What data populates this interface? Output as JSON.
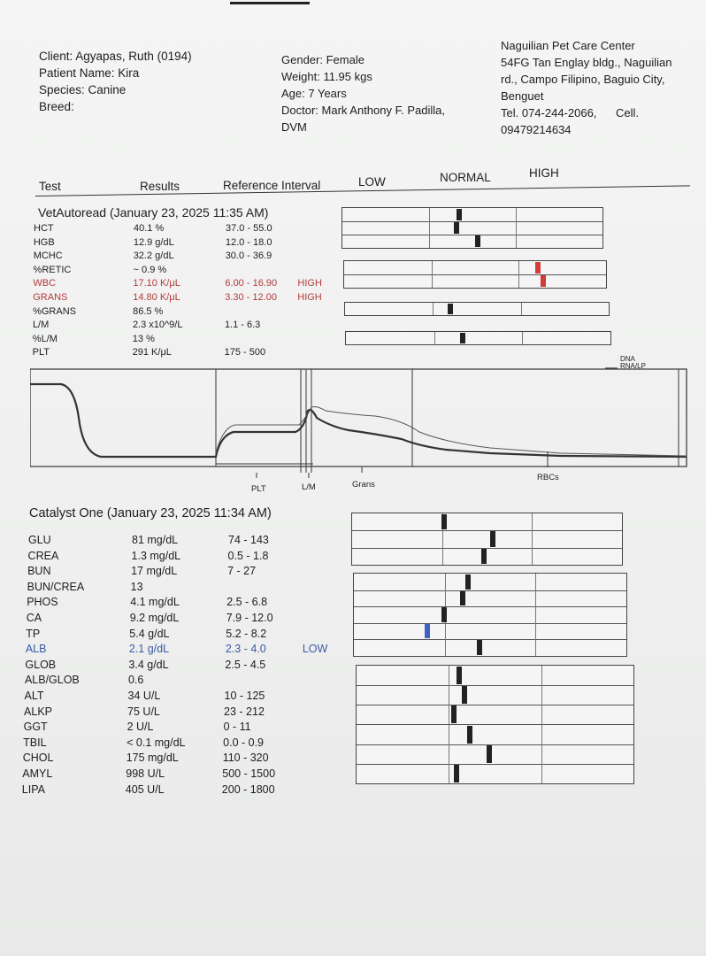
{
  "header": {
    "client": "Client: Agyapas, Ruth (0194)",
    "patient": "Patient Name: Kira",
    "species": "Species: Canine",
    "breed": "Breed:",
    "gender": "Gender: Female",
    "weight": "Weight: 11.95 kgs",
    "age": "Age: 7 Years",
    "doctor_line1": "Doctor: Mark Anthony F. Padilla,",
    "doctor_line2": "DVM",
    "clinic_name": "Naguilian Pet Care Center",
    "clinic_addr1": "54FG Tan Englay bldg., Naguilian",
    "clinic_addr2": "rd., Campo Filipino, Baguio City,",
    "clinic_addr3": "Benguet",
    "clinic_tel": "Tel. 074-244-2066,",
    "clinic_cell": "Cell.",
    "clinic_cellno": "09479214634"
  },
  "columns": {
    "test": "Test",
    "results": "Results",
    "reference": "Reference Interval",
    "low": "LOW",
    "normal": "NORMAL",
    "high": "HIGH"
  },
  "vetautoread": {
    "title": "VetAutoread (January 23, 2025 11:35 AM)",
    "rows": [
      {
        "name": "HCT",
        "result": "40.1 %",
        "ref": "37.0 - 55.0",
        "flag": "",
        "color": "normal"
      },
      {
        "name": "HGB",
        "result": "12.9 g/dL",
        "ref": "12.0 - 18.0",
        "flag": "",
        "color": "normal"
      },
      {
        "name": "MCHC",
        "result": "32.2 g/dL",
        "ref": "30.0 - 36.9",
        "flag": "",
        "color": "normal"
      },
      {
        "name": "%RETIC",
        "result": "~ 0.9 %",
        "ref": "",
        "flag": "",
        "color": "normal"
      },
      {
        "name": "WBC",
        "result": "17.10 K/μL",
        "ref": "6.00 - 16.90",
        "flag": "HIGH",
        "color": "red"
      },
      {
        "name": "GRANS",
        "result": "14.80 K/μL",
        "ref": "3.30 - 12.00",
        "flag": "HIGH",
        "color": "red"
      },
      {
        "name": "%GRANS",
        "result": "86.5 %",
        "ref": "",
        "flag": "",
        "color": "normal"
      },
      {
        "name": "L/M",
        "result": "2.3 x10^9/L",
        "ref": "1.1 - 6.3",
        "flag": "",
        "color": "normal"
      },
      {
        "name": "%L/M",
        "result": "13 %",
        "ref": "",
        "flag": "",
        "color": "normal"
      },
      {
        "name": "PLT",
        "result": "291 K/μL",
        "ref": "175 - 500",
        "flag": "",
        "color": "normal"
      }
    ],
    "markers": [
      {
        "group": 0,
        "row": 0,
        "position": 0.45,
        "color": "black"
      },
      {
        "group": 0,
        "row": 1,
        "position": 0.44,
        "color": "black"
      },
      {
        "group": 0,
        "row": 2,
        "position": 0.52,
        "color": "black"
      },
      {
        "group": 1,
        "row": 0,
        "position": 0.74,
        "color": "red"
      },
      {
        "group": 1,
        "row": 1,
        "position": 0.76,
        "color": "red"
      },
      {
        "group": 2,
        "row": 0,
        "position": 0.4,
        "color": "black"
      },
      {
        "group": 3,
        "row": 0,
        "position": 0.44,
        "color": "black"
      }
    ]
  },
  "histogram": {
    "legend": [
      "DNA",
      "RNA/LP"
    ],
    "labels": [
      "PLT",
      "L/M",
      "Grans",
      "RBCs"
    ]
  },
  "catalyst": {
    "title": "Catalyst One (January 23, 2025 11:34 AM)",
    "rows": [
      {
        "name": "GLU",
        "result": "81 mg/dL",
        "ref": "74 - 143",
        "flag": "",
        "color": "normal"
      },
      {
        "name": "CREA",
        "result": "1.3 mg/dL",
        "ref": "0.5 - 1.8",
        "flag": "",
        "color": "normal"
      },
      {
        "name": "BUN",
        "result": "17 mg/dL",
        "ref": "7 - 27",
        "flag": "",
        "color": "normal"
      },
      {
        "name": "BUN/CREA",
        "result": "13",
        "ref": "",
        "flag": "",
        "color": "normal"
      },
      {
        "name": "PHOS",
        "result": "4.1 mg/dL",
        "ref": "2.5 - 6.8",
        "flag": "",
        "color": "normal"
      },
      {
        "name": "CA",
        "result": "9.2 mg/dL",
        "ref": "7.9 - 12.0",
        "flag": "",
        "color": "normal"
      },
      {
        "name": "TP",
        "result": "5.4 g/dL",
        "ref": "5.2 - 8.2",
        "flag": "",
        "color": "normal"
      },
      {
        "name": "ALB",
        "result": "2.1 g/dL",
        "ref": "2.3 - 4.0",
        "flag": "LOW",
        "color": "blue"
      },
      {
        "name": "GLOB",
        "result": "3.4 g/dL",
        "ref": "2.5 - 4.5",
        "flag": "",
        "color": "normal"
      },
      {
        "name": "ALB/GLOB",
        "result": "0.6",
        "ref": "",
        "flag": "",
        "color": "normal"
      },
      {
        "name": "ALT",
        "result": "34 U/L",
        "ref": "10 - 125",
        "flag": "",
        "color": "normal"
      },
      {
        "name": "ALKP",
        "result": "75 U/L",
        "ref": "23 - 212",
        "flag": "",
        "color": "normal"
      },
      {
        "name": "GGT",
        "result": "2 U/L",
        "ref": "0 - 11",
        "flag": "",
        "color": "normal"
      },
      {
        "name": "TBIL",
        "result": "< 0.1 mg/dL",
        "ref": "0.0 - 0.9",
        "flag": "",
        "color": "normal"
      },
      {
        "name": "CHOL",
        "result": "175 mg/dL",
        "ref": "110 - 320",
        "flag": "",
        "color": "normal"
      },
      {
        "name": "AMYL",
        "result": "998 U/L",
        "ref": "500 - 1500",
        "flag": "",
        "color": "normal"
      },
      {
        "name": "LIPA",
        "result": "405 U/L",
        "ref": "200 - 1800",
        "flag": "",
        "color": "normal"
      }
    ],
    "markers": [
      {
        "group": 0,
        "row": 0,
        "position": 0.34,
        "color": "black"
      },
      {
        "group": 0,
        "row": 1,
        "position": 0.52,
        "color": "black"
      },
      {
        "group": 0,
        "row": 2,
        "position": 0.49,
        "color": "black"
      },
      {
        "group": 1,
        "row": 0,
        "position": 0.42,
        "color": "black"
      },
      {
        "group": 1,
        "row": 1,
        "position": 0.4,
        "color": "black"
      },
      {
        "group": 1,
        "row": 2,
        "position": 0.33,
        "color": "black"
      },
      {
        "group": 1,
        "row": 3,
        "position": 0.27,
        "color": "blue"
      },
      {
        "group": 1,
        "row": 4,
        "position": 0.46,
        "color": "black"
      },
      {
        "group": 2,
        "row": 0,
        "position": 0.37,
        "color": "black"
      },
      {
        "group": 2,
        "row": 1,
        "position": 0.39,
        "color": "black"
      },
      {
        "group": 2,
        "row": 2,
        "position": 0.35,
        "color": "black"
      },
      {
        "group": 2,
        "row": 3,
        "position": 0.41,
        "color": "black"
      },
      {
        "group": 2,
        "row": 4,
        "position": 0.48,
        "color": "black"
      },
      {
        "group": 2,
        "row": 5,
        "position": 0.36,
        "color": "black"
      }
    ]
  }
}
